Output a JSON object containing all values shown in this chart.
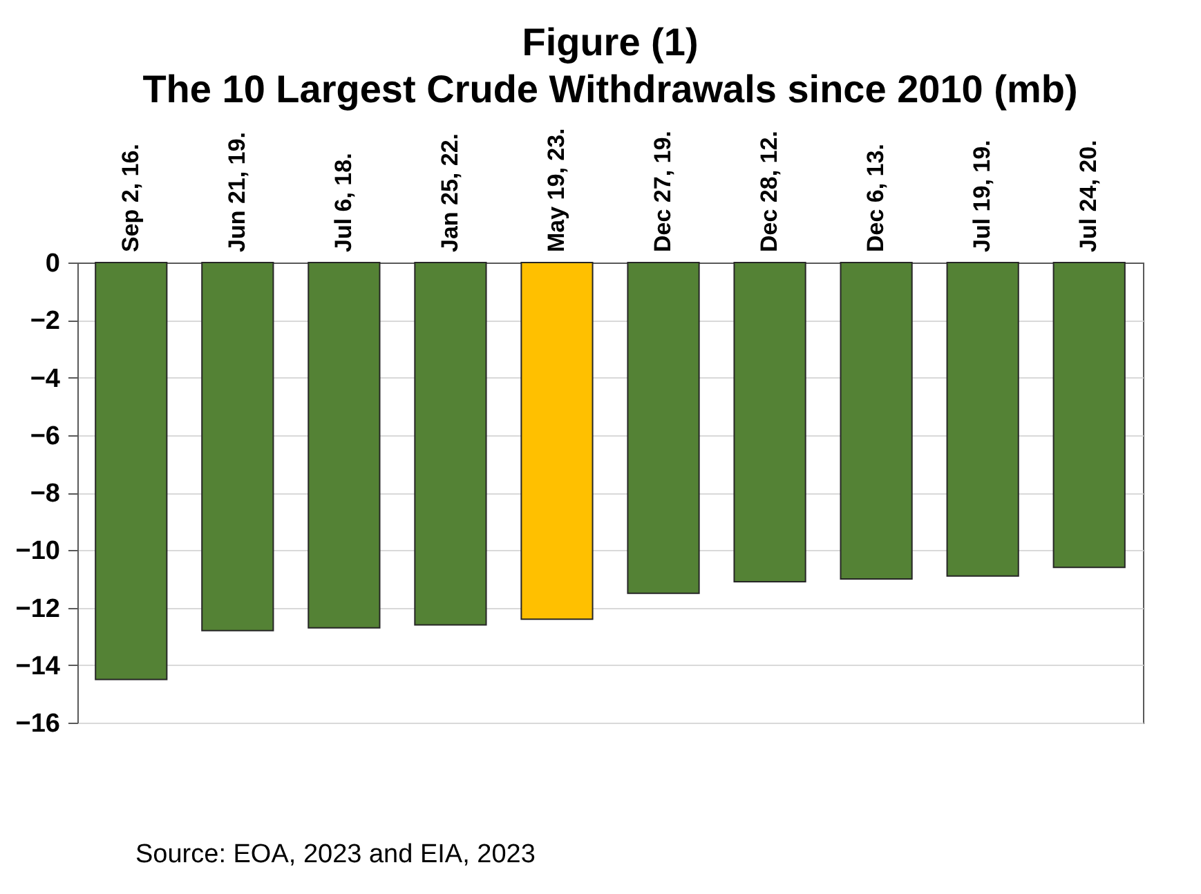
{
  "chart_data": {
    "type": "bar",
    "title": "Figure (1)",
    "subtitle": "The 10 Largest Crude Withdrawals since 2010 (mb)",
    "categories": [
      "Sep 2, 16.",
      "Jun 21, 19.",
      "Jul 6, 18.",
      "Jan 25, 22.",
      "May 19, 23.",
      "Dec 27, 19.",
      "Dec 28, 12.",
      "Dec 6, 13.",
      "Jul 19, 19.",
      "Jul 24, 20."
    ],
    "values": [
      -14.5,
      -12.8,
      -12.7,
      -12.6,
      -12.4,
      -11.5,
      -11.1,
      -11.0,
      -10.9,
      -10.6
    ],
    "colors": [
      "#548235",
      "#548235",
      "#548235",
      "#548235",
      "#ffc000",
      "#548235",
      "#548235",
      "#548235",
      "#548235",
      "#548235"
    ],
    "ylim": [
      -16,
      0
    ],
    "yticks": [
      -16,
      -14,
      -12,
      -10,
      -8,
      -6,
      -4,
      -2,
      0
    ],
    "grid": "y",
    "annotations": [
      "Source: EOA, 2023 and EIA, 2023"
    ]
  }
}
